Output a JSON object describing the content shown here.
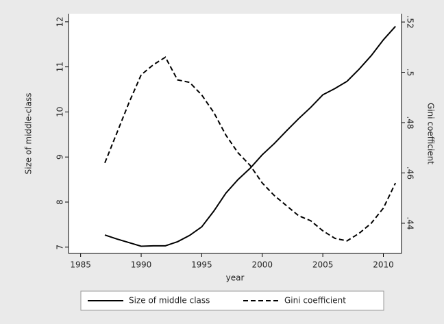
{
  "chart_data": {
    "type": "line",
    "x": [
      1987,
      1988,
      1989,
      1990,
      1991,
      1992,
      1993,
      1994,
      1995,
      1996,
      1997,
      1998,
      1999,
      2000,
      2001,
      2002,
      2003,
      2004,
      2005,
      2006,
      2007,
      2008,
      2009,
      2010,
      2011
    ],
    "x_label": "year",
    "y_label": "Size of middle-class",
    "y2_label": "Gini coefficient",
    "series": [
      {
        "name": "Size of middle class",
        "color": "#000000",
        "style": "solid",
        "values": [
          7.27,
          7.18,
          7.1,
          7.02,
          7.03,
          7.03,
          7.12,
          7.26,
          7.45,
          7.8,
          8.2,
          8.5,
          8.75,
          9.05,
          9.3,
          9.58,
          9.85,
          10.1,
          10.38,
          10.52,
          10.68,
          10.95,
          11.25,
          11.6,
          11.9
        ]
      },
      {
        "name": "Gini coefficient",
        "color": "#000000",
        "style": "dashed",
        "axis": "y2",
        "values": [
          0.464,
          0.476,
          0.488,
          0.499,
          0.503,
          0.506,
          0.497,
          0.496,
          0.491,
          0.484,
          0.475,
          0.468,
          0.463,
          0.456,
          0.451,
          0.447,
          0.443,
          0.441,
          0.437,
          0.434,
          0.433,
          0.436,
          0.44,
          0.446,
          0.456
        ]
      }
    ],
    "xlim": [
      1984,
      2011.5
    ],
    "xticks": [
      1985,
      1990,
      1995,
      2000,
      2005,
      2010
    ],
    "ylim": [
      6.86,
      12.18
    ],
    "yticks": [
      7,
      8,
      9,
      10,
      11,
      12
    ],
    "y2lim": [
      0.428,
      0.5233
    ],
    "y2ticks": [
      {
        "value": 0.44,
        "label": ".44"
      },
      {
        "value": 0.46,
        "label": ".46"
      },
      {
        "value": 0.48,
        "label": ".48"
      },
      {
        "value": 0.5,
        "label": ".5"
      },
      {
        "value": 0.52,
        "label": ".52"
      }
    ],
    "legend": "bottom"
  }
}
